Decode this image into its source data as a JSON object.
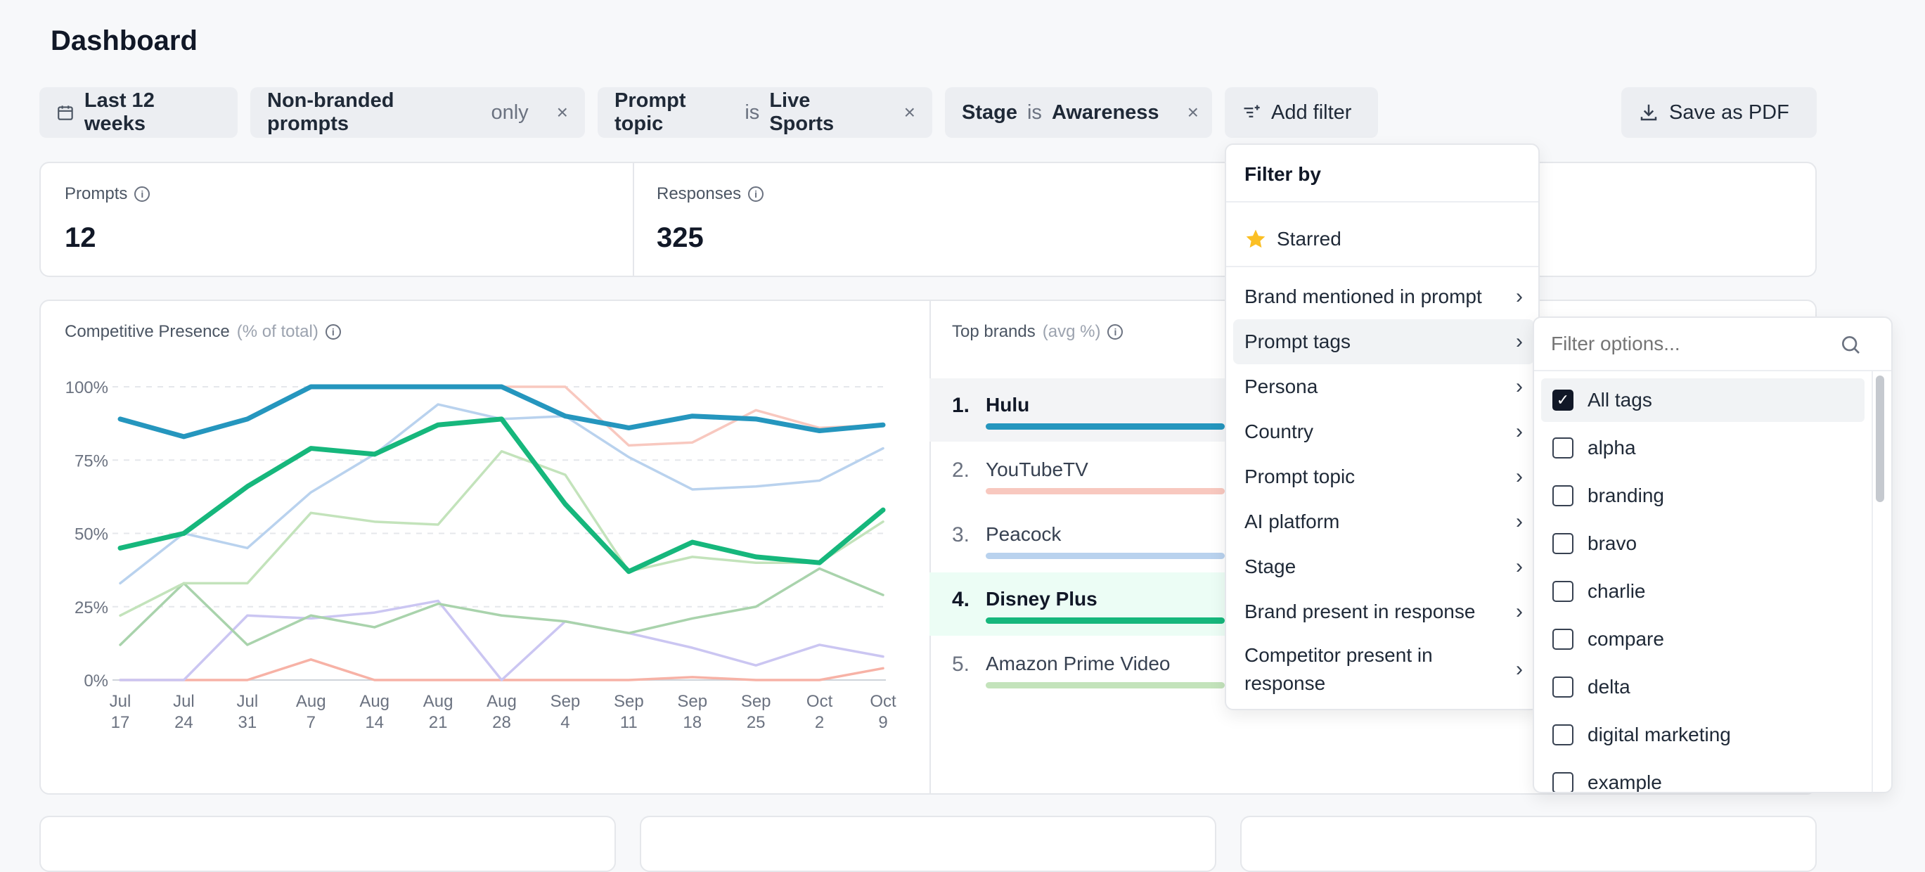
{
  "page_title": "Dashboard",
  "filters": {
    "date": "Last 12 weeks",
    "chip1": {
      "label": "Non-branded prompts",
      "qual": "only"
    },
    "chip2": {
      "field": "Prompt topic",
      "op": "is",
      "value": "Live Sports"
    },
    "chip3": {
      "field": "Stage",
      "op": "is",
      "value": "Awareness"
    },
    "add": "Add filter",
    "remove": "×"
  },
  "save_pdf": "Save as PDF",
  "stats": [
    {
      "label": "Prompts",
      "value": "12"
    },
    {
      "label": "Responses",
      "value": "325"
    }
  ],
  "competitive": {
    "title": "Competitive Presence",
    "sub": "(% of total)",
    "y_ticks": [
      "100%",
      "75%",
      "50%",
      "25%",
      "0%"
    ],
    "x_ticks": [
      [
        "Jul",
        "17"
      ],
      [
        "Jul",
        "24"
      ],
      [
        "Jul",
        "31"
      ],
      [
        "Aug",
        "7"
      ],
      [
        "Aug",
        "14"
      ],
      [
        "Aug",
        "21"
      ],
      [
        "Aug",
        "28"
      ],
      [
        "Sep",
        "4"
      ],
      [
        "Sep",
        "11"
      ],
      [
        "Sep",
        "18"
      ],
      [
        "Sep",
        "25"
      ],
      [
        "Oct",
        "2"
      ],
      [
        "Oct",
        "9"
      ]
    ]
  },
  "top_brands": {
    "title": "Top brands",
    "sub": "(avg %)",
    "items": [
      {
        "rank": "1.",
        "name": "Hulu"
      },
      {
        "rank": "2.",
        "name": "YouTubeTV"
      },
      {
        "rank": "3.",
        "name": "Peacock"
      },
      {
        "rank": "4.",
        "name": "Disney Plus"
      },
      {
        "rank": "5.",
        "name": "Amazon Prime Video"
      }
    ]
  },
  "colors": {
    "hulu": "#2596be",
    "youtubetv": "#f8c8bf",
    "peacock": "#b9d2ee",
    "disney": "#16b77c",
    "amazon": "#c3e3bb",
    "sage": "#a9d3ac",
    "lavender": "#cbc6f2",
    "salmon": "#f7b2a6"
  },
  "filter_menu": {
    "header": "Filter by",
    "starred": "Starred",
    "items": [
      "Brand mentioned in prompt",
      "Prompt tags",
      "Persona",
      "Country",
      "Prompt topic",
      "AI platform",
      "Stage",
      "Brand present in response",
      "Competitor present in response"
    ]
  },
  "tags_menu": {
    "placeholder": "Filter options...",
    "options": [
      "All tags",
      "alpha",
      "branding",
      "bravo",
      "charlie",
      "compare",
      "delta",
      "digital marketing",
      "example"
    ]
  },
  "chart_data": {
    "type": "line",
    "x": [
      "Jul 17",
      "Jul 24",
      "Jul 31",
      "Aug 7",
      "Aug 14",
      "Aug 21",
      "Aug 28",
      "Sep 4",
      "Sep 11",
      "Sep 18",
      "Sep 25",
      "Oct 2",
      "Oct 9"
    ],
    "ylim": [
      0,
      100
    ],
    "series": [
      {
        "name": "Hulu",
        "color": "#2596be",
        "values": [
          89,
          83,
          89,
          100,
          100,
          100,
          100,
          90,
          86,
          90,
          89,
          85,
          87
        ]
      },
      {
        "name": "Disney Plus",
        "color": "#16b77c",
        "values": [
          45,
          50,
          66,
          79,
          77,
          87,
          89,
          60,
          37,
          47,
          42,
          40,
          58
        ]
      },
      {
        "name": "Peacock",
        "color": "#b9d2ee",
        "values": [
          33,
          50,
          45,
          64,
          77,
          94,
          89,
          90,
          76,
          65,
          66,
          68,
          79
        ]
      },
      {
        "name": "YouTubeTV",
        "color": "#f8c8bf",
        "values": [
          89,
          83,
          89,
          100,
          100,
          100,
          100,
          100,
          80,
          81,
          92,
          86,
          87
        ]
      },
      {
        "name": "Amazon Prime Video",
        "color": "#c3e3bb",
        "values": [
          22,
          33,
          33,
          57,
          54,
          53,
          78,
          70,
          37,
          42,
          40,
          40,
          54
        ]
      },
      {
        "color": "#a9d3ac",
        "values": [
          12,
          33,
          12,
          22,
          18,
          26,
          22,
          20,
          16,
          21,
          25,
          38,
          29
        ]
      },
      {
        "color": "#cbc6f2",
        "values": [
          0,
          0,
          22,
          21,
          23,
          27,
          0,
          20,
          16,
          11,
          5,
          12,
          8
        ]
      },
      {
        "color": "#f7b2a6",
        "values": [
          0,
          0,
          0,
          7,
          0,
          0,
          0,
          0,
          0,
          1,
          0,
          0,
          4
        ]
      }
    ]
  }
}
